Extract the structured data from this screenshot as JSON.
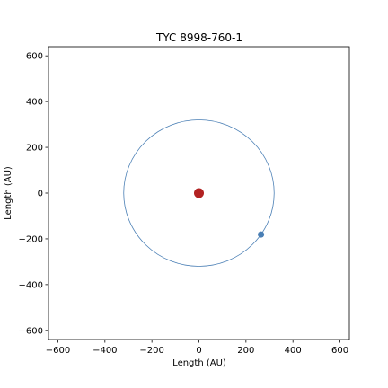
{
  "chart_data": {
    "type": "scatter",
    "title": "TYC 8998-760-1",
    "xlabel": "Length (AU)",
    "ylabel": "Length (AU)",
    "xlim": [
      -640,
      640
    ],
    "ylim": [
      -640,
      640
    ],
    "xticks": [
      -600,
      -400,
      -200,
      0,
      200,
      400,
      600
    ],
    "yticks": [
      -600,
      -400,
      -200,
      0,
      200,
      400,
      600
    ],
    "grid": false,
    "star": {
      "x": 0,
      "y": 0,
      "color": "#b22222"
    },
    "orbit": {
      "center": [
        0,
        0
      ],
      "radius": 320,
      "color": "#4a7fb5"
    },
    "planet": {
      "x": 264,
      "y": -181,
      "color": "#4a7fb5"
    }
  }
}
